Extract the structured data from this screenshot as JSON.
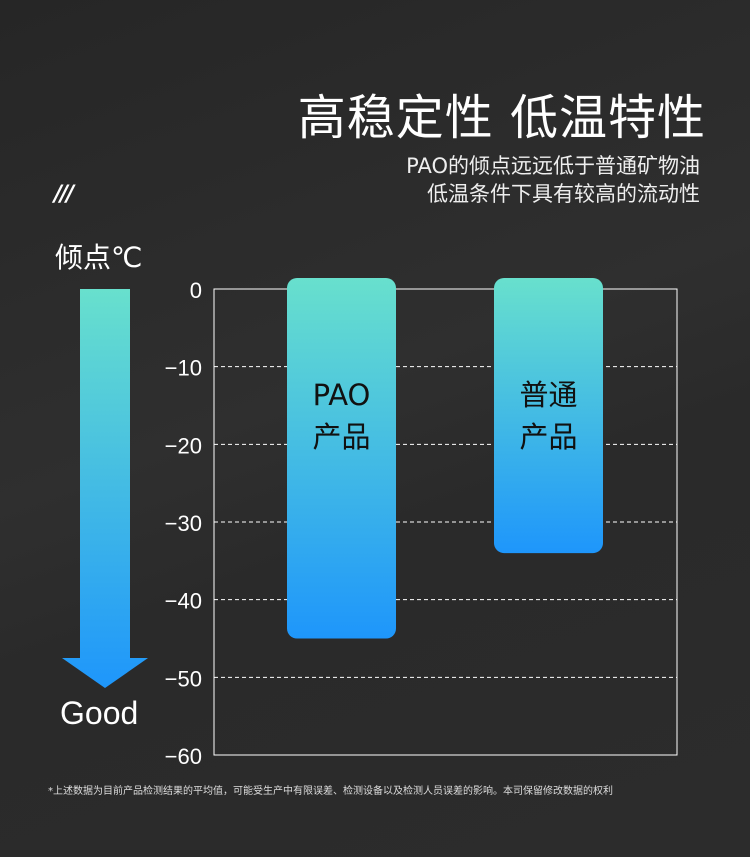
{
  "header": {
    "title": "高稳定性 低温特性",
    "subtitle_lines": [
      "PAO的倾点远远低于普通矿物油",
      "低温条件下具有较高的流动性"
    ],
    "decoration": "///"
  },
  "arrow": {
    "unit_label": "倾点℃",
    "bottom_label": "Good",
    "colors": [
      "#68e0cd",
      "#1e96fb"
    ]
  },
  "footnote": "*上述数据为目前产品检测结果的平均值，可能受生产中有限误差、检测设备以及检测人员误差的影响。本司保留修改数据的权利",
  "chart_data": {
    "type": "bar",
    "categories": [
      "PAO产品",
      "普通产品"
    ],
    "category_label_lines": [
      [
        "PAO",
        "产品"
      ],
      [
        "普通",
        "产品"
      ]
    ],
    "values": [
      -45,
      -34
    ],
    "ylabel": "倾点℃",
    "ylim": [
      -60,
      0
    ],
    "yticks": [
      0,
      -10,
      -20,
      -30,
      -40,
      -50,
      -60
    ],
    "ytick_labels": [
      "0",
      "−10",
      "−20",
      "−30",
      "−40",
      "−50",
      "−60"
    ],
    "grid": "dashed horizontal",
    "bar_gradient": [
      "#68e0cd",
      "#1e96fb"
    ]
  }
}
